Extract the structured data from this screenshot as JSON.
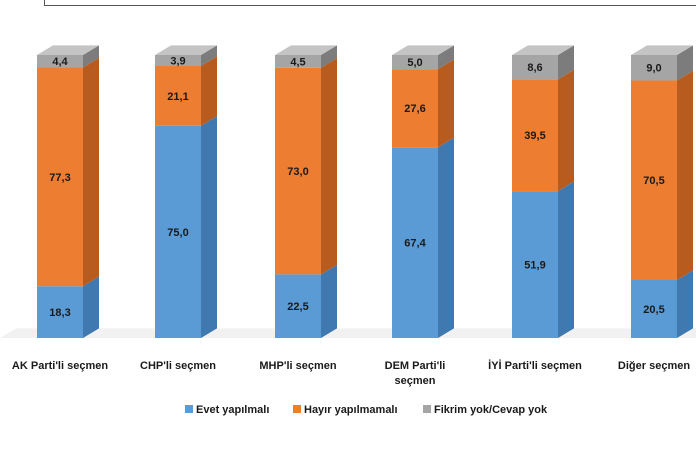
{
  "colors": {
    "evet": "#5b9bd5",
    "evet_side": "#3f79b0",
    "evet_top": "#7fb2e1",
    "hayir": "#ed7d31",
    "hayir_side": "#b85b1f",
    "hayir_top": "#f19a5e",
    "fikrim": "#a5a5a5",
    "fikrim_side": "#7c7c7c",
    "fikrim_top": "#c4c4c4",
    "floor": "#e8e8e8"
  },
  "chart_data": {
    "type": "bar",
    "stacked": true,
    "ylim": [
      0,
      100
    ],
    "categories": [
      [
        "AK Parti'li seçmen"
      ],
      [
        "CHP'li seçmen"
      ],
      [
        "MHP'li seçmen"
      ],
      [
        "DEM Parti'li",
        "seçmen"
      ],
      [
        "İYİ Parti'li seçmen"
      ],
      [
        "Diğer seçmen"
      ]
    ],
    "series": [
      {
        "name": "Evet yapılmalı",
        "values": [
          18.3,
          75.0,
          22.5,
          67.4,
          51.9,
          20.5
        ],
        "labels": [
          "18,3",
          "75,0",
          "22,5",
          "67,4",
          "51,9",
          "20,5"
        ]
      },
      {
        "name": "Hayır yapılmamalı",
        "values": [
          77.3,
          21.1,
          73.0,
          27.6,
          39.5,
          70.5
        ],
        "labels": [
          "77,3",
          "21,1",
          "73,0",
          "27,6",
          "39,5",
          "70,5"
        ]
      },
      {
        "name": "Fikrim yok/Cevap yok",
        "values": [
          4.4,
          3.9,
          4.5,
          5.0,
          8.6,
          9.0
        ],
        "labels": [
          "4,4",
          "3,9",
          "4,5",
          "5,0",
          "8,6",
          "9,0"
        ]
      }
    ],
    "legend_position": "bottom"
  }
}
